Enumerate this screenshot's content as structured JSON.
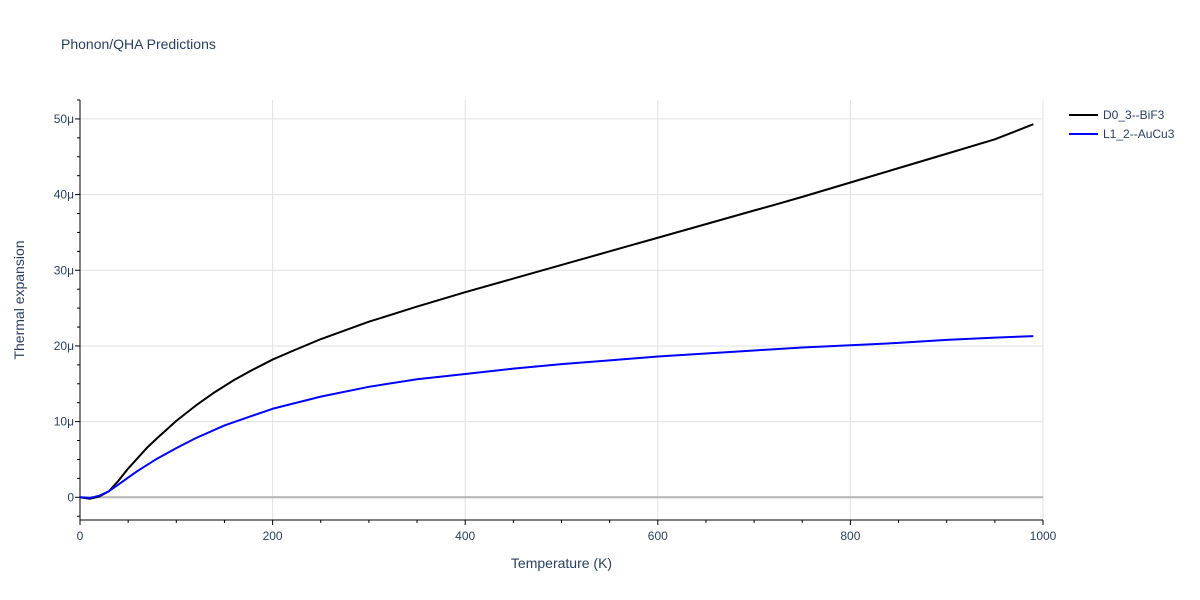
{
  "chart_data": {
    "type": "line",
    "title": "Phonon/QHA Predictions",
    "xlabel": "Temperature (K)",
    "ylabel": "Thermal expansion",
    "xlim": [
      0,
      1000
    ],
    "ylim": [
      -3e-06,
      5.25e-05
    ],
    "x_ticks": [
      {
        "value": 0,
        "label": "0"
      },
      {
        "value": 200,
        "label": "200"
      },
      {
        "value": 400,
        "label": "400"
      },
      {
        "value": 600,
        "label": "600"
      },
      {
        "value": 800,
        "label": "800"
      },
      {
        "value": 1000,
        "label": "1000"
      }
    ],
    "y_ticks": [
      {
        "value": 0,
        "label": "0"
      },
      {
        "value": 1e-05,
        "label": "10μ"
      },
      {
        "value": 2e-05,
        "label": "20μ"
      },
      {
        "value": 3e-05,
        "label": "30μ"
      },
      {
        "value": 4e-05,
        "label": "40μ"
      },
      {
        "value": 5e-05,
        "label": "50μ"
      }
    ],
    "grid": true,
    "legend_position": "top-right",
    "series": [
      {
        "name": "D0_3--BiF3",
        "color": "#000000",
        "x": [
          0,
          10,
          20,
          30,
          40,
          50,
          60,
          70,
          80,
          100,
          120,
          140,
          160,
          180,
          200,
          220,
          250,
          300,
          350,
          400,
          450,
          500,
          550,
          600,
          650,
          700,
          720,
          750,
          800,
          850,
          900,
          950,
          990
        ],
        "y": [
          0,
          -2e-07,
          1e-07,
          8e-07,
          2.2e-06,
          3.8e-06,
          5.2e-06,
          6.6e-06,
          7.8e-06,
          1.01e-05,
          1.21e-05,
          1.39e-05,
          1.55e-05,
          1.69e-05,
          1.82e-05,
          1.93e-05,
          2.09e-05,
          2.32e-05,
          2.52e-05,
          2.71e-05,
          2.89e-05,
          3.07e-05,
          3.25e-05,
          3.43e-05,
          3.61e-05,
          3.79e-05,
          3.86e-05,
          3.97e-05,
          4.16e-05,
          4.35e-05,
          4.54e-05,
          4.73e-05,
          4.93e-05
        ]
      },
      {
        "name": "L1_2--AuCu3",
        "color": "#0000ff",
        "x": [
          0,
          10,
          20,
          30,
          40,
          50,
          60,
          80,
          100,
          120,
          150,
          200,
          250,
          300,
          350,
          400,
          450,
          500,
          550,
          600,
          650,
          700,
          750,
          800,
          850,
          900,
          950,
          990
        ],
        "y": [
          0,
          -1e-07,
          2e-07,
          8e-07,
          1.7e-06,
          2.6e-06,
          3.5e-06,
          5.1e-06,
          6.5e-06,
          7.8e-06,
          9.5e-06,
          1.17e-05,
          1.33e-05,
          1.46e-05,
          1.56e-05,
          1.63e-05,
          1.7e-05,
          1.76e-05,
          1.81e-05,
          1.86e-05,
          1.9e-05,
          1.94e-05,
          1.98e-05,
          2.01e-05,
          2.04e-05,
          2.08e-05,
          2.11e-05,
          2.13e-05
        ]
      }
    ]
  }
}
